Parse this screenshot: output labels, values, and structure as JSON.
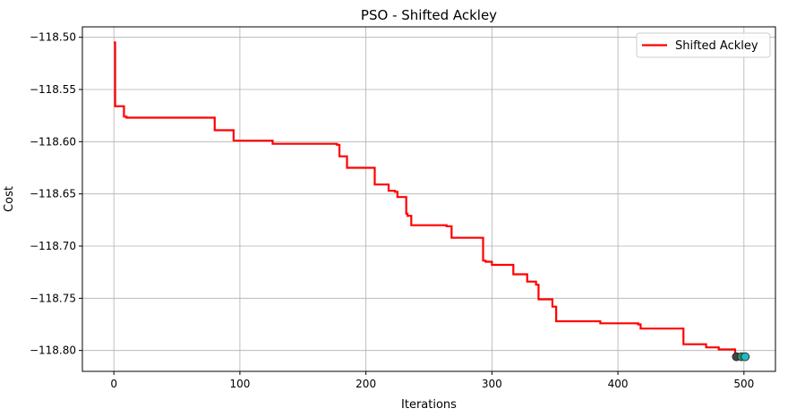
{
  "chart_data": {
    "type": "line",
    "title": "PSO - Shifted Ackley",
    "xlabel": "Iterations",
    "ylabel": "Cost",
    "xlim": [
      -25,
      525
    ],
    "ylim": [
      -118.82,
      -118.49
    ],
    "xticks": [
      0,
      100,
      200,
      300,
      400,
      500
    ],
    "yticks": [
      -118.5,
      -118.55,
      -118.6,
      -118.65,
      -118.7,
      -118.75,
      -118.8
    ],
    "xtick_labels": [
      "0",
      "100",
      "200",
      "300",
      "400",
      "500"
    ],
    "ytick_labels": [
      "−118.50",
      "−118.55",
      "−118.60",
      "−118.65",
      "−118.70",
      "−118.75",
      "−118.80"
    ],
    "grid": true,
    "legend": {
      "position": "top-right",
      "entries": [
        "Shifted Ackley"
      ]
    },
    "series": [
      {
        "name": "Shifted Ackley",
        "color": "#ff0000",
        "style": "step",
        "x": [
          0,
          1,
          7,
          8,
          10,
          80,
          95,
          126,
          177,
          179,
          185,
          207,
          218,
          223,
          225,
          232,
          233,
          236,
          264,
          268,
          293,
          295,
          300,
          317,
          320,
          328,
          335,
          337,
          348,
          351,
          353,
          386,
          416,
          418,
          450,
          452,
          470,
          480,
          493,
          500
        ],
        "y": [
          -118.505,
          -118.566,
          -118.566,
          -118.576,
          -118.577,
          -118.589,
          -118.599,
          -118.602,
          -118.603,
          -118.614,
          -118.625,
          -118.641,
          -118.647,
          -118.648,
          -118.653,
          -118.669,
          -118.671,
          -118.68,
          -118.681,
          -118.692,
          -118.714,
          -118.715,
          -118.718,
          -118.727,
          -118.727,
          -118.734,
          -118.737,
          -118.751,
          -118.758,
          -118.772,
          -118.772,
          -118.774,
          -118.775,
          -118.779,
          -118.779,
          -118.794,
          -118.797,
          -118.799,
          -118.804,
          -118.805
        ]
      }
    ],
    "markers": [
      {
        "x": 494,
        "y": -118.806,
        "color": "#444444"
      },
      {
        "x": 498,
        "y": -118.806,
        "color": "#2f8f5f"
      },
      {
        "x": 501,
        "y": -118.806,
        "color": "#20b8c8"
      }
    ]
  }
}
